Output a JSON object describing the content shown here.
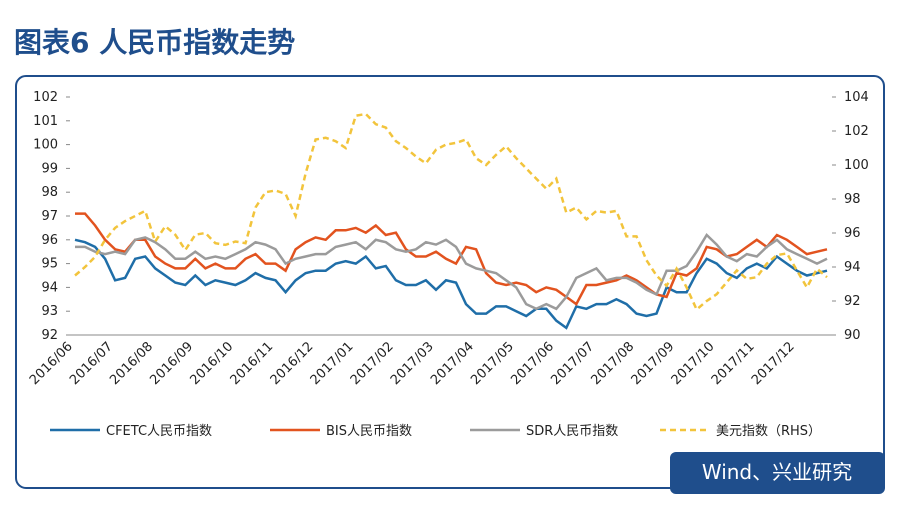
{
  "chart_data": {
    "type": "line",
    "title": "图表6 人民币指数走势",
    "source": "Wind、兴业研究",
    "categories": [
      "2016/06",
      null,
      null,
      null,
      "2016/07",
      null,
      null,
      null,
      "2016/08",
      null,
      null,
      null,
      "2016/09",
      null,
      null,
      null,
      "2016/10",
      null,
      null,
      null,
      "2016/11",
      null,
      null,
      null,
      "2016/12",
      null,
      null,
      null,
      "2017/01",
      null,
      null,
      null,
      "2017/02",
      null,
      null,
      null,
      "2017/03",
      null,
      null,
      null,
      "2017/04",
      null,
      null,
      null,
      "2017/05",
      null,
      null,
      null,
      "2017/06",
      null,
      null,
      null,
      "2017/07",
      null,
      null,
      null,
      "2017/08",
      null,
      null,
      null,
      "2017/09",
      null,
      null,
      null,
      "2017/10",
      null,
      null,
      null,
      "2017/11",
      null,
      null,
      null,
      "2017/12",
      null,
      null,
      null
    ],
    "ylim": [
      92,
      102
    ],
    "yticks": [
      92,
      93,
      94,
      95,
      96,
      97,
      98,
      99,
      100,
      101,
      102
    ],
    "y2lim": [
      90,
      104
    ],
    "y2ticks": [
      90,
      92,
      94,
      96,
      98,
      100,
      102,
      104
    ],
    "series": [
      {
        "name": "CFETC人民币指数",
        "color": "#1f6ea8",
        "dash": false,
        "values": [
          96.0,
          95.9,
          95.7,
          95.2,
          94.3,
          94.4,
          95.2,
          95.3,
          94.8,
          94.5,
          94.2,
          94.1,
          94.5,
          94.1,
          94.3,
          94.2,
          94.1,
          94.3,
          94.6,
          94.4,
          94.3,
          93.8,
          94.3,
          94.6,
          94.7,
          94.7,
          95.0,
          95.1,
          95.0,
          95.3,
          94.8,
          94.9,
          94.3,
          94.1,
          94.1,
          94.3,
          93.9,
          94.3,
          94.2,
          93.3,
          92.9,
          92.9,
          93.2,
          93.2,
          93.0,
          92.8,
          93.1,
          93.1,
          92.6,
          92.3,
          93.2,
          93.1,
          93.3,
          93.3,
          93.5,
          93.3,
          92.9,
          92.8,
          92.9,
          94.0,
          93.8,
          93.8,
          94.6,
          95.2,
          95.0,
          94.6,
          94.4,
          94.8,
          95.0,
          94.8,
          95.3,
          95.0,
          94.7,
          94.5,
          94.6,
          94.7
        ]
      },
      {
        "name": "BIS人民币指数",
        "color": "#e2531f",
        "dash": false,
        "values": [
          97.1,
          97.1,
          96.6,
          96.0,
          95.6,
          95.5,
          96.0,
          96.0,
          95.3,
          95.0,
          94.8,
          94.8,
          95.2,
          94.8,
          95.0,
          94.8,
          94.8,
          95.2,
          95.4,
          95.0,
          95.0,
          94.7,
          95.6,
          95.9,
          96.1,
          96.0,
          96.4,
          96.4,
          96.5,
          96.3,
          96.6,
          96.2,
          96.3,
          95.6,
          95.3,
          95.3,
          95.5,
          95.2,
          95.0,
          95.7,
          95.6,
          94.6,
          94.2,
          94.1,
          94.2,
          94.1,
          93.8,
          94.0,
          93.9,
          93.6,
          93.3,
          94.1,
          94.1,
          94.2,
          94.3,
          94.5,
          94.3,
          94.0,
          93.7,
          93.6,
          94.6,
          94.5,
          94.8,
          95.7,
          95.6,
          95.3,
          95.4,
          95.7,
          96.0,
          95.7,
          96.2,
          96.0,
          95.7,
          95.4,
          95.5,
          95.6
        ]
      },
      {
        "name": "SDR人民币指数",
        "color": "#9b9b9b",
        "dash": false,
        "values": [
          95.7,
          95.7,
          95.5,
          95.4,
          95.5,
          95.4,
          96.0,
          96.1,
          95.9,
          95.6,
          95.2,
          95.2,
          95.5,
          95.2,
          95.3,
          95.2,
          95.4,
          95.6,
          95.9,
          95.8,
          95.6,
          95.0,
          95.2,
          95.3,
          95.4,
          95.4,
          95.7,
          95.8,
          95.9,
          95.6,
          96.0,
          95.9,
          95.6,
          95.5,
          95.6,
          95.9,
          95.8,
          96.0,
          95.7,
          95.0,
          94.8,
          94.7,
          94.6,
          94.3,
          94.0,
          93.3,
          93.1,
          93.3,
          93.1,
          93.6,
          94.4,
          94.6,
          94.8,
          94.3,
          94.4,
          94.4,
          94.2,
          93.9,
          93.7,
          94.7,
          94.7,
          94.9,
          95.5,
          96.2,
          95.8,
          95.3,
          95.1,
          95.4,
          95.3,
          95.7,
          96.0,
          95.6,
          95.4,
          95.2,
          95.0,
          95.2
        ]
      },
      {
        "name": "美元指数（RHS）",
        "color": "#f2c43c",
        "dash": true,
        "axis": "y2",
        "values": [
          93.5,
          94.0,
          94.6,
          95.6,
          96.3,
          96.7,
          97.0,
          97.3,
          95.5,
          96.4,
          95.9,
          95.0,
          95.9,
          96.0,
          95.4,
          95.3,
          95.5,
          95.4,
          97.5,
          98.4,
          98.5,
          98.3,
          97.0,
          99.5,
          101.5,
          101.6,
          101.4,
          101.0,
          102.9,
          103.0,
          102.4,
          102.2,
          101.4,
          101.0,
          100.5,
          100.1,
          100.9,
          101.2,
          101.3,
          101.5,
          100.4,
          100.0,
          100.6,
          101.1,
          100.4,
          99.8,
          99.2,
          98.6,
          99.2,
          97.2,
          97.5,
          96.8,
          97.3,
          97.2,
          97.3,
          95.8,
          95.8,
          94.4,
          93.5,
          92.9,
          93.9,
          92.8,
          91.5,
          92.0,
          92.4,
          93.1,
          93.8,
          93.3,
          93.4,
          94.2,
          94.7,
          94.8,
          93.8,
          92.8,
          93.9,
          93.4
        ]
      }
    ]
  }
}
